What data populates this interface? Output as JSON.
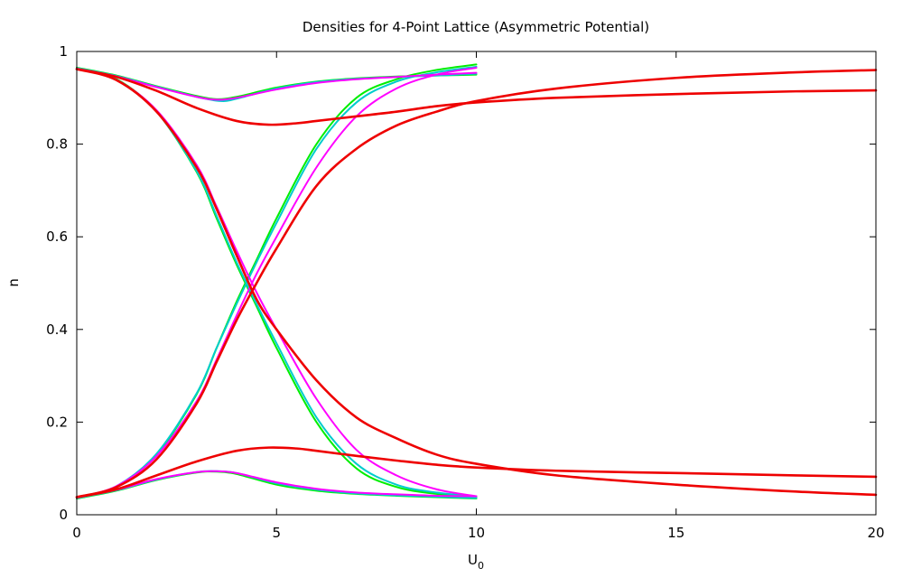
{
  "chart_data": {
    "type": "line",
    "title": "Densities for 4-Point Lattice (Asymmetric Potential)",
    "xlabel": "U",
    "xlabel_subscript": "0",
    "ylabel": "n",
    "xlim": [
      0,
      20
    ],
    "ylim": [
      0,
      1
    ],
    "xticks": [
      0,
      5,
      10,
      15,
      20
    ],
    "yticks": [
      0,
      0.2,
      0.4,
      0.6,
      0.8,
      1
    ],
    "ytick_labels": [
      "0",
      "0.2",
      "0.4",
      "0.6",
      "0.8",
      "1"
    ],
    "grid": false,
    "series": [
      {
        "color": "#00ee00",
        "x": [
          0,
          1,
          2,
          3,
          3.5,
          4,
          5,
          6,
          7,
          8,
          9,
          10
        ],
        "y": [
          0.965,
          0.948,
          0.925,
          0.904,
          0.897,
          0.902,
          0.922,
          0.935,
          0.942,
          0.946,
          0.948,
          0.95
        ]
      },
      {
        "color": "#00ee00",
        "x": [
          0,
          1,
          2,
          3,
          3.5,
          4,
          4.5,
          5,
          6,
          7,
          8,
          9,
          10
        ],
        "y": [
          0.965,
          0.94,
          0.87,
          0.74,
          0.64,
          0.54,
          0.45,
          0.36,
          0.2,
          0.1,
          0.06,
          0.045,
          0.038
        ]
      },
      {
        "color": "#00ee00",
        "x": [
          0,
          1,
          2,
          3,
          3.5,
          4,
          4.5,
          5,
          6,
          7,
          8,
          9,
          10
        ],
        "y": [
          0.035,
          0.06,
          0.13,
          0.26,
          0.36,
          0.46,
          0.55,
          0.64,
          0.8,
          0.9,
          0.94,
          0.96,
          0.972
        ]
      },
      {
        "color": "#00ee00",
        "x": [
          0,
          1,
          2,
          3,
          3.5,
          4,
          5,
          6,
          7,
          8,
          9,
          10
        ],
        "y": [
          0.035,
          0.052,
          0.075,
          0.091,
          0.093,
          0.088,
          0.065,
          0.052,
          0.045,
          0.041,
          0.038,
          0.035
        ]
      },
      {
        "color": "#00cccc",
        "x": [
          0,
          1,
          2,
          3,
          3.6,
          4,
          5,
          6,
          7,
          8,
          9,
          10
        ],
        "y": [
          0.964,
          0.947,
          0.924,
          0.902,
          0.893,
          0.898,
          0.92,
          0.934,
          0.941,
          0.945,
          0.948,
          0.952
        ]
      },
      {
        "color": "#00cccc",
        "x": [
          0,
          1,
          2,
          3,
          3.5,
          4,
          4.5,
          5,
          6,
          7,
          8,
          9,
          10
        ],
        "y": [
          0.964,
          0.939,
          0.87,
          0.742,
          0.645,
          0.545,
          0.455,
          0.37,
          0.21,
          0.11,
          0.065,
          0.048,
          0.04
        ]
      },
      {
        "color": "#00cccc",
        "x": [
          0,
          1,
          2,
          3,
          3.5,
          4,
          4.5,
          5,
          6,
          7,
          8,
          9,
          10
        ],
        "y": [
          0.036,
          0.062,
          0.132,
          0.262,
          0.36,
          0.455,
          0.545,
          0.63,
          0.79,
          0.89,
          0.935,
          0.955,
          0.967
        ]
      },
      {
        "color": "#00cccc",
        "x": [
          0,
          1,
          2,
          3,
          3.5,
          4,
          5,
          6,
          7,
          8,
          9,
          10
        ],
        "y": [
          0.036,
          0.053,
          0.076,
          0.092,
          0.094,
          0.09,
          0.068,
          0.054,
          0.046,
          0.042,
          0.039,
          0.036
        ]
      },
      {
        "color": "#ff00ff",
        "x": [
          0,
          1,
          2,
          3,
          3.5,
          4,
          5,
          6,
          7,
          8,
          9,
          10
        ],
        "y": [
          0.963,
          0.946,
          0.923,
          0.902,
          0.896,
          0.9,
          0.918,
          0.932,
          0.94,
          0.945,
          0.95,
          0.954
        ]
      },
      {
        "color": "#ff00ff",
        "x": [
          0,
          1,
          2,
          3,
          3.5,
          4,
          4.5,
          5,
          6,
          7,
          8,
          9,
          10
        ],
        "y": [
          0.963,
          0.938,
          0.873,
          0.755,
          0.665,
          0.57,
          0.48,
          0.4,
          0.25,
          0.14,
          0.085,
          0.055,
          0.04
        ]
      },
      {
        "color": "#ff00ff",
        "x": [
          0,
          1,
          2,
          3,
          3.5,
          4,
          4.5,
          5,
          6,
          7,
          8,
          9,
          10
        ],
        "y": [
          0.037,
          0.062,
          0.127,
          0.245,
          0.335,
          0.43,
          0.52,
          0.6,
          0.75,
          0.86,
          0.92,
          0.95,
          0.965
        ]
      },
      {
        "color": "#ff00ff",
        "x": [
          0,
          1,
          2,
          3,
          3.5,
          4,
          5,
          6,
          7,
          8,
          9,
          10
        ],
        "y": [
          0.037,
          0.054,
          0.077,
          0.092,
          0.094,
          0.09,
          0.07,
          0.056,
          0.048,
          0.044,
          0.041,
          0.04
        ]
      },
      {
        "color": "#ee0000",
        "x": [
          0,
          1,
          2,
          3,
          4,
          4.8,
          5.5,
          6,
          7,
          8,
          9,
          10,
          12,
          15,
          18,
          20
        ],
        "y": [
          0.962,
          0.945,
          0.915,
          0.878,
          0.85,
          0.842,
          0.845,
          0.85,
          0.86,
          0.87,
          0.882,
          0.89,
          0.9,
          0.908,
          0.914,
          0.916
        ]
      },
      {
        "color": "#ee0000",
        "x": [
          0,
          1,
          2,
          3,
          3.5,
          4,
          4.5,
          5,
          6,
          7,
          8,
          9,
          10,
          12,
          15,
          18,
          20
        ],
        "y": [
          0.962,
          0.938,
          0.87,
          0.75,
          0.66,
          0.56,
          0.465,
          0.4,
          0.29,
          0.21,
          0.165,
          0.13,
          0.11,
          0.085,
          0.065,
          0.05,
          0.043
        ]
      },
      {
        "color": "#ee0000",
        "x": [
          0,
          1,
          2,
          3,
          3.5,
          4,
          4.5,
          5,
          6,
          7,
          8,
          9,
          10,
          12,
          15,
          18,
          20
        ],
        "y": [
          0.038,
          0.06,
          0.12,
          0.24,
          0.33,
          0.42,
          0.5,
          0.575,
          0.71,
          0.79,
          0.84,
          0.87,
          0.893,
          0.92,
          0.943,
          0.955,
          0.96
        ]
      },
      {
        "color": "#ee0000",
        "x": [
          0,
          1,
          2,
          3,
          4,
          4.8,
          5.5,
          6,
          7,
          8,
          9,
          10,
          12,
          15,
          18,
          20
        ],
        "y": [
          0.038,
          0.055,
          0.085,
          0.115,
          0.138,
          0.145,
          0.143,
          0.138,
          0.127,
          0.117,
          0.108,
          0.102,
          0.095,
          0.09,
          0.085,
          0.082
        ]
      }
    ]
  }
}
